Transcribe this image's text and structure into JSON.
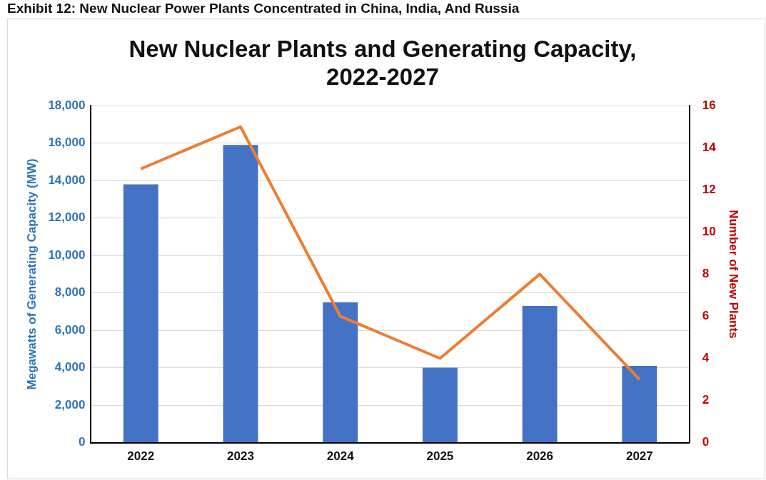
{
  "chart_data": {
    "type": "bar",
    "title": [
      "New Nuclear Plants and Generating Capacity,",
      "2022-2027"
    ],
    "annotations": [
      "Exhibit 12: New Nuclear Power Plants Concentrated in China, India, And Russia"
    ],
    "categories": [
      "2022",
      "2023",
      "2024",
      "2025",
      "2026",
      "2027"
    ],
    "ylabel": "Megawatts of Generating Capacity (MW)",
    "y2label": "Number of New Plants",
    "series": [
      {
        "color": "#4472c4",
        "values": [
          13800,
          15900,
          7500,
          4000,
          7300,
          4100
        ]
      },
      {
        "type": "line",
        "axis": "y2",
        "color": "#ed7d31",
        "values": [
          13,
          15,
          6,
          4,
          8,
          3
        ]
      }
    ],
    "ylim": [
      0,
      18000
    ],
    "yticks": [
      {
        "value": 0,
        "label": "0"
      },
      {
        "value": 2000,
        "label": "2,000"
      },
      {
        "value": 4000,
        "label": "4,000"
      },
      {
        "value": 6000,
        "label": "6,000"
      },
      {
        "value": 8000,
        "label": "8,000"
      },
      {
        "value": 10000,
        "label": "10,000"
      },
      {
        "value": 12000,
        "label": "12,000"
      },
      {
        "value": 14000,
        "label": "14,000"
      },
      {
        "value": 16000,
        "label": "16,000"
      },
      {
        "value": 18000,
        "label": "18,000"
      }
    ],
    "y2lim": [
      0,
      16
    ],
    "y2ticks": [
      0,
      2,
      4,
      6,
      8,
      10,
      12,
      14,
      16
    ],
    "grid": "y",
    "legend": false,
    "marker": "none",
    "line_style": "solid"
  }
}
